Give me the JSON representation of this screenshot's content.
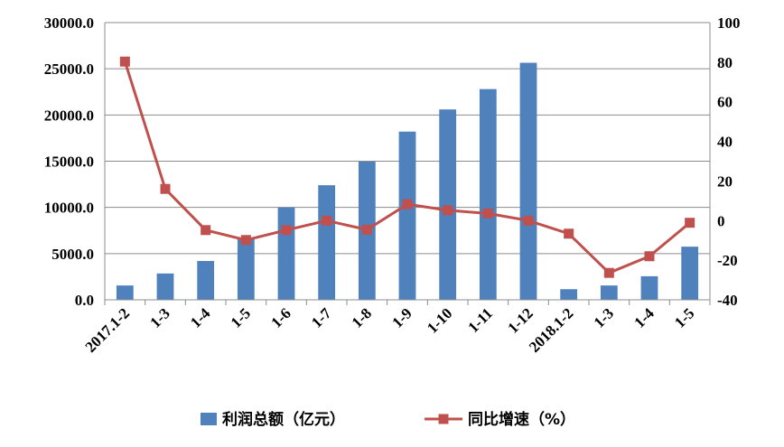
{
  "chart_data": {
    "type": "bar",
    "categories": [
      "2017.1-2",
      "1-3",
      "1-4",
      "1-5",
      "1-6",
      "1-7",
      "1-8",
      "1-9",
      "1-10",
      "1-11",
      "1-12",
      "2018.1-2",
      "1-3",
      "1-4",
      "1-5"
    ],
    "series": [
      {
        "name": "利润总额（亿元）",
        "type": "bar",
        "axis": "left",
        "color": "#4f81bd",
        "values": [
          1550,
          2850,
          4200,
          6600,
          10000,
          12400,
          14950,
          18200,
          20600,
          22800,
          25650,
          1150,
          1550,
          2550,
          5750
        ]
      },
      {
        "name": "同比增速（%）",
        "type": "line",
        "axis": "right",
        "color": "#c0504d",
        "values": [
          80.3,
          16.0,
          -4.8,
          -9.8,
          -4.8,
          0.0,
          -4.6,
          8.3,
          5.2,
          3.6,
          0.0,
          -6.6,
          -26.4,
          -18.0,
          -1.1
        ]
      }
    ],
    "y_left": {
      "min": 0,
      "max": 30000,
      "step": 5000,
      "ticks": [
        "0.0",
        "5000.0",
        "10000.0",
        "15000.0",
        "20000.0",
        "25000.0",
        "30000.0"
      ]
    },
    "y_right": {
      "min": -40,
      "max": 100,
      "step": 20,
      "ticks": [
        "-40",
        "-20",
        "0",
        "20",
        "40",
        "60",
        "80",
        "100"
      ]
    },
    "grid": true,
    "legend_position": "bottom"
  }
}
